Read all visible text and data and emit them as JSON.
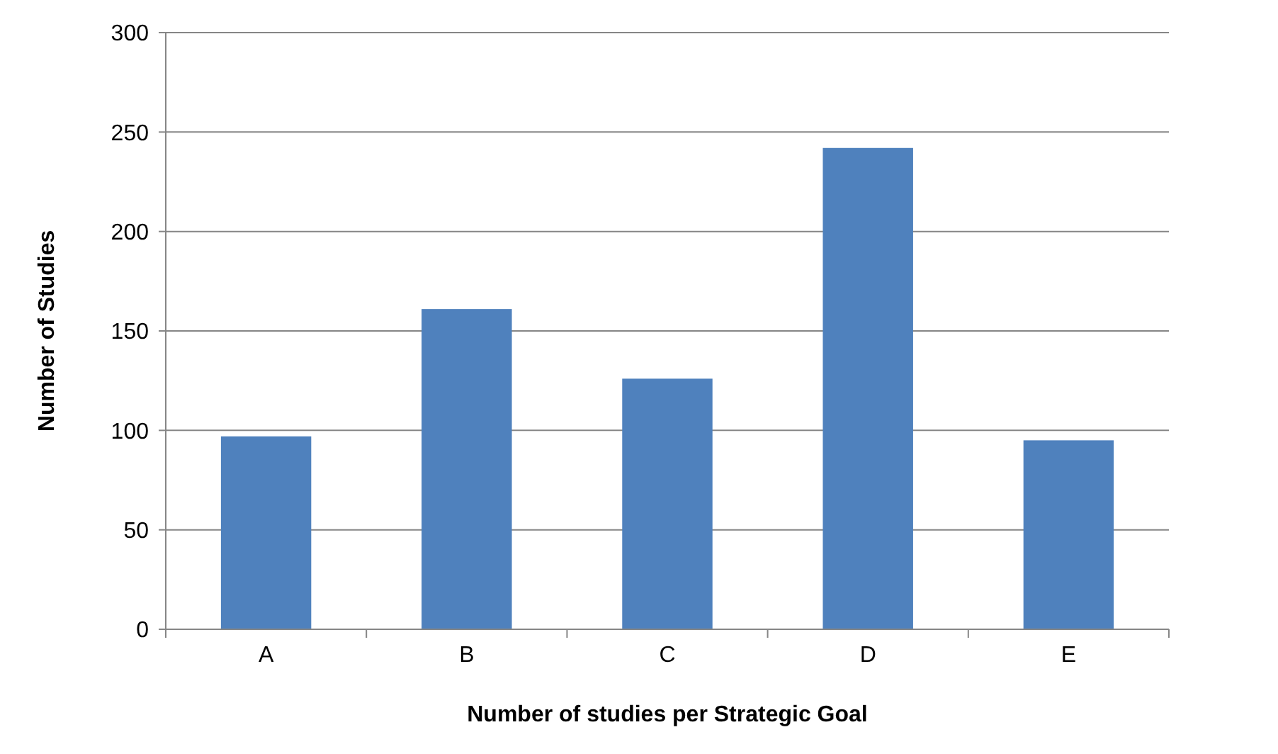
{
  "chart_data": {
    "type": "bar",
    "xlabel": "Number of studies per Strategic Goal",
    "ylabel": "Number of Studies",
    "categories": [
      "A",
      "B",
      "C",
      "D",
      "E"
    ],
    "values": [
      97,
      161,
      126,
      242,
      95
    ],
    "color": "#4f81bd",
    "ylim": [
      0,
      300
    ],
    "yticks": [
      0,
      50,
      100,
      150,
      200,
      250,
      300
    ],
    "grid": "y"
  }
}
